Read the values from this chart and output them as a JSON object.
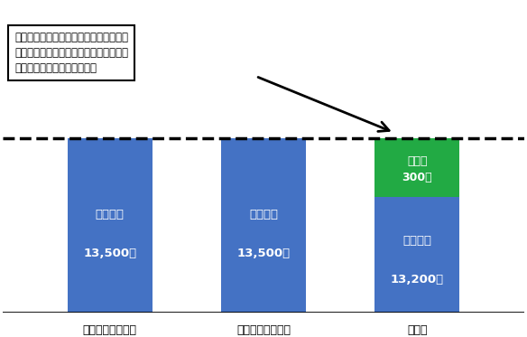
{
  "bars": [
    {
      "label": "購入時の前営業日",
      "base_value": 13500,
      "dividend": 0,
      "base_color": "#4472C4"
    },
    {
      "label": "決算日の前営業日",
      "base_value": 13500,
      "dividend": 0,
      "base_color": "#4472C4"
    },
    {
      "label": "決算日",
      "base_value": 13200,
      "dividend": 300,
      "base_color": "#4472C4",
      "div_color": "#22AA44"
    }
  ],
  "dashed_line_value": 13500,
  "base_label": "基準価額",
  "div_label": "分配金",
  "annotation_text": "基準価額＋分配金の合計額は購入時の基\n準価額と同じだが、基準価額は購入時の\n基準価額を下回ることになる",
  "background_color": "#FFFFFF",
  "text_color_white": "#FFFFFF",
  "text_color_black": "#000000"
}
